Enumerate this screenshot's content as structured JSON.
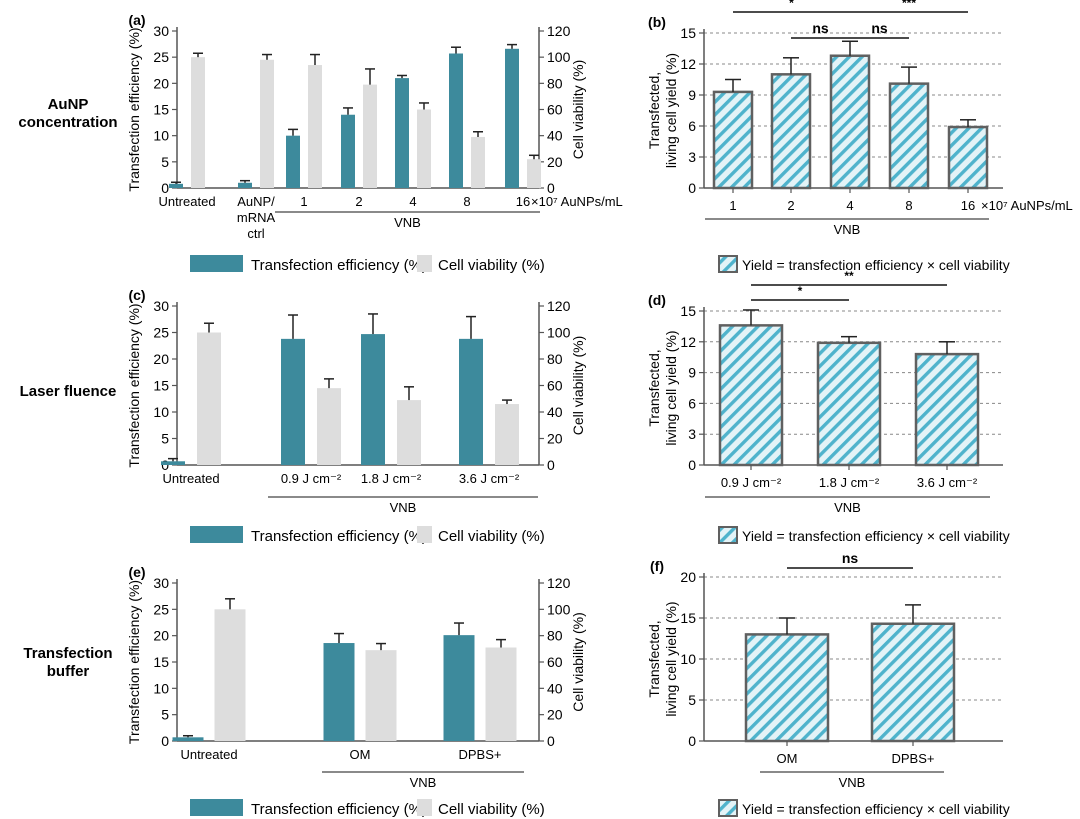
{
  "row_labels": [
    {
      "lines": [
        "AuNP",
        "concentration"
      ]
    },
    {
      "lines": [
        "Laser fluence"
      ]
    },
    {
      "lines": [
        "Transfection",
        "buffer"
      ]
    }
  ],
  "colors": {
    "teal": "#3d8a9c",
    "grey": "#dddddd",
    "hatch_bg": "#e3f3f7",
    "hatch_line": "#4fb3cc",
    "hatch_edge": "#606060",
    "grid": "#888888"
  },
  "legend_dual": {
    "teal_label": "Transfection efficiency (%)",
    "grey_label": "Cell viability (%)"
  },
  "legend_yield": "Yield = transfection efficiency × cell viability",
  "chart_data": [
    {
      "panel": "(a)",
      "type": "bar",
      "ylabel": "Transfection efficiency (%)",
      "y2label": "Cell viability (%)",
      "ylim": [
        0,
        30
      ],
      "y2lim": [
        0,
        120
      ],
      "yticks": [
        0,
        5,
        10,
        15,
        20,
        25,
        30
      ],
      "y2ticks": [
        0,
        20,
        40,
        60,
        80,
        100,
        120
      ],
      "categories": [
        [
          "Untreated"
        ],
        [
          "AuNP/",
          "mRNA",
          "ctrl"
        ],
        [
          "1"
        ],
        [
          "2"
        ],
        [
          "4"
        ],
        [
          "8"
        ],
        [
          "16"
        ]
      ],
      "unit_label": "×10⁷ AuNPs/mL",
      "group_label": "VNB",
      "group_range": [
        2,
        6
      ],
      "series": [
        {
          "name": "Transfection efficiency (%)",
          "axis": "left",
          "values": [
            0.8,
            1.0,
            10.0,
            14.0,
            21.0,
            25.7,
            26.6
          ],
          "errors": [
            0.3,
            0.4,
            1.2,
            1.3,
            0.5,
            1.2,
            0.8
          ]
        },
        {
          "name": "Cell viability (%)",
          "axis": "right",
          "values": [
            100,
            98,
            94,
            79,
            60,
            39,
            22
          ],
          "errors": [
            3,
            4,
            8,
            12,
            5,
            4,
            3
          ]
        }
      ]
    },
    {
      "panel": "(b)",
      "type": "bar",
      "ylabel": "Transfected, living cell yield (%)",
      "ylim": [
        0,
        15
      ],
      "yticks": [
        0,
        3,
        6,
        9,
        12,
        15
      ],
      "grid": true,
      "categories": [
        [
          "1"
        ],
        [
          "2"
        ],
        [
          "4"
        ],
        [
          "8"
        ],
        [
          "16"
        ]
      ],
      "unit_label": "×10⁷ AuNPs/mL",
      "group_label": "VNB",
      "values": [
        9.3,
        11.0,
        12.8,
        10.1,
        5.9
      ],
      "errors": [
        1.2,
        1.6,
        1.4,
        1.6,
        0.7
      ],
      "significance": [
        {
          "from": 0,
          "to": 2,
          "label": "*",
          "level": 0
        },
        {
          "from": 1,
          "to": 2,
          "label": "ns",
          "level": 1
        },
        {
          "from": 2,
          "to": 3,
          "label": "ns",
          "level": 1
        },
        {
          "from": 2,
          "to": 4,
          "label": "***",
          "level": 0
        }
      ]
    },
    {
      "panel": "(c)",
      "type": "bar",
      "ylabel": "Transfection efficiency (%)",
      "y2label": "Cell viability (%)",
      "ylim": [
        0,
        30
      ],
      "y2lim": [
        0,
        120
      ],
      "yticks": [
        0,
        5,
        10,
        15,
        20,
        25,
        30
      ],
      "y2ticks": [
        0,
        20,
        40,
        60,
        80,
        100,
        120
      ],
      "categories": [
        [
          "Untreated"
        ],
        [
          "0.9 J cm⁻²"
        ],
        [
          "1.8 J cm⁻²"
        ],
        [
          "3.6 J cm⁻²"
        ]
      ],
      "unit_label": "",
      "group_label": "VNB",
      "group_range": [
        1,
        3
      ],
      "series": [
        {
          "name": "Transfection efficiency (%)",
          "axis": "left",
          "values": [
            0.7,
            23.8,
            24.7,
            23.8
          ],
          "errors": [
            0.5,
            4.5,
            3.8,
            4.2
          ]
        },
        {
          "name": "Cell viability (%)",
          "axis": "right",
          "values": [
            100,
            58,
            49,
            46
          ],
          "errors": [
            7,
            7,
            10,
            3
          ]
        }
      ]
    },
    {
      "panel": "(d)",
      "type": "bar",
      "ylabel": "Transfected, living cell yield (%)",
      "ylim": [
        0,
        15
      ],
      "yticks": [
        0,
        3,
        6,
        9,
        12,
        15
      ],
      "grid": true,
      "categories": [
        [
          "0.9 J cm⁻²"
        ],
        [
          "1.8 J cm⁻²"
        ],
        [
          "3.6 J cm⁻²"
        ]
      ],
      "unit_label": "",
      "group_label": "VNB",
      "values": [
        13.6,
        11.9,
        10.8
      ],
      "errors": [
        1.5,
        0.6,
        1.2
      ],
      "significance": [
        {
          "from": 0,
          "to": 1,
          "label": "*",
          "level": 1
        },
        {
          "from": 0,
          "to": 2,
          "label": "**",
          "level": 0
        }
      ]
    },
    {
      "panel": "(e)",
      "type": "bar",
      "ylabel": "Transfection efficiency (%)",
      "y2label": "Cell viability (%)",
      "ylim": [
        0,
        30
      ],
      "y2lim": [
        0,
        120
      ],
      "yticks": [
        0,
        5,
        10,
        15,
        20,
        25,
        30
      ],
      "y2ticks": [
        0,
        20,
        40,
        60,
        80,
        100,
        120
      ],
      "categories": [
        [
          "Untreated"
        ],
        [
          "OM"
        ],
        [
          "DPBS+"
        ]
      ],
      "unit_label": "",
      "group_label": "VNB",
      "group_range": [
        1,
        2
      ],
      "series": [
        {
          "name": "Transfection efficiency (%)",
          "axis": "left",
          "values": [
            0.7,
            18.6,
            20.1
          ],
          "errors": [
            0.3,
            1.8,
            2.3
          ]
        },
        {
          "name": "Cell viability (%)",
          "axis": "right",
          "values": [
            100,
            69,
            71
          ],
          "errors": [
            8,
            5,
            6
          ]
        }
      ]
    },
    {
      "panel": "(f)",
      "type": "bar",
      "ylabel": "Transfected, living cell yield (%)",
      "ylim": [
        0,
        20
      ],
      "yticks": [
        0,
        5,
        10,
        15,
        20
      ],
      "grid": true,
      "categories": [
        [
          "OM"
        ],
        [
          "DPBS+"
        ]
      ],
      "unit_label": "",
      "group_label": "VNB",
      "values": [
        13.0,
        14.3
      ],
      "errors": [
        2.0,
        2.3
      ],
      "significance": [
        {
          "from": 0,
          "to": 1,
          "label": "ns",
          "level": 0
        }
      ]
    }
  ]
}
